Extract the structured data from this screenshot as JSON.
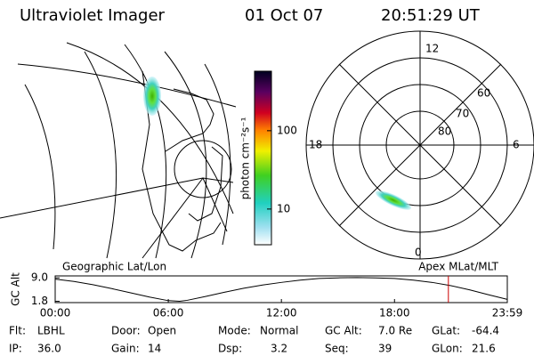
{
  "header": {
    "title": "Ultraviolet Imager",
    "date": "01 Oct 07",
    "time": "20:51:29 UT"
  },
  "colorbar": {
    "label": "photon cm⁻²s⁻¹",
    "range": [
      3.5,
      575
    ],
    "log": true,
    "ticks": [
      10,
      100
    ]
  },
  "polar": {
    "mlt_labels": [
      "12",
      "18",
      "6",
      "0"
    ],
    "lat_labels": [
      "60",
      "70",
      "80"
    ]
  },
  "chart_data": {
    "type": "line",
    "title_left": "Geographic Lat/Lon",
    "title_right": "Apex MLat/MLT",
    "ylabel": "GC Alt",
    "x": [
      0,
      1,
      2,
      3,
      4,
      5,
      6,
      6.6,
      7,
      8,
      9,
      10,
      11,
      12,
      13,
      14,
      15,
      16,
      17,
      18,
      19,
      20,
      21,
      22,
      23,
      23.983
    ],
    "values": [
      8.6,
      7.9,
      6.9,
      5.7,
      4.4,
      3.1,
      2.0,
      1.8,
      2.1,
      3.3,
      4.6,
      5.8,
      6.8,
      7.6,
      8.3,
      8.8,
      9.0,
      9.1,
      9.0,
      8.8,
      8.3,
      7.6,
      6.6,
      5.3,
      3.8,
      2.4
    ],
    "color": "#000000",
    "cursor": 20.858,
    "cursor_color": "#cc0000",
    "xlim": [
      0,
      23.983
    ],
    "ylim": [
      1.4,
      9.6
    ],
    "xticks": [
      {
        "value": 0,
        "label": "00:00"
      },
      {
        "value": 6,
        "label": "06:00"
      },
      {
        "value": 12,
        "label": "12:00"
      },
      {
        "value": 18,
        "label": "18:00"
      },
      {
        "value": 23.983,
        "label": "23:59"
      }
    ],
    "yticks": [
      {
        "value": 9,
        "label": "9.0"
      },
      {
        "value": 1.8,
        "label": "1.8"
      }
    ]
  },
  "footer": [
    [
      {
        "label": "Flt:",
        "value": "LBHL"
      },
      {
        "label": "Door:",
        "value": "Open"
      },
      {
        "label": "Mode:",
        "value": "Normal"
      },
      {
        "label": "GC Alt:",
        "value": "7.0 Re"
      },
      {
        "label": "GLat:",
        "value": "-64.4"
      }
    ],
    [
      {
        "label": "IP:",
        "value": "36.0"
      },
      {
        "label": "Gain:",
        "value": "14"
      },
      {
        "label": "Dsp:",
        "value": "3.2"
      },
      {
        "label": "Seq:",
        "value": "39"
      },
      {
        "label": "GLon:",
        "value": "21.6"
      }
    ]
  ]
}
